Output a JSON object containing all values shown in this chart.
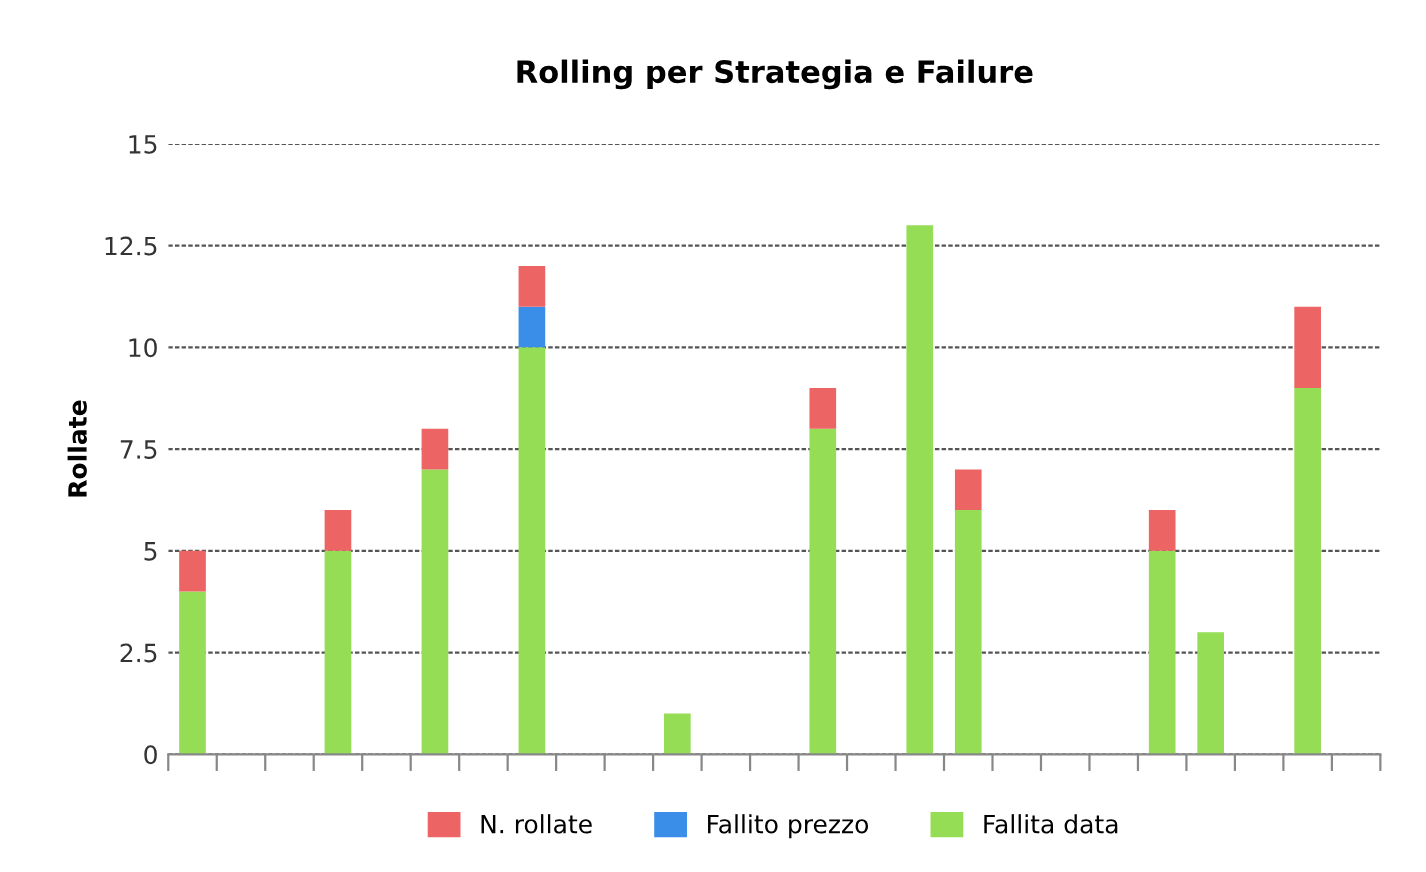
{
  "chart_data": {
    "type": "bar",
    "title": "Rolling per Strategia e Failure",
    "ylabel": "Rollate",
    "stacked": true,
    "categories": [
      null,
      null,
      null,
      null,
      null,
      null,
      null,
      null,
      null,
      null,
      null,
      null,
      null,
      null,
      null,
      null,
      null,
      null,
      null,
      null,
      null,
      null,
      null,
      null,
      null
    ],
    "series": [
      {
        "name": "Fallita data",
        "color": "#95dd55",
        "values": [
          4,
          null,
          null,
          5,
          null,
          7,
          null,
          10,
          null,
          null,
          1,
          null,
          null,
          8,
          null,
          13,
          6,
          null,
          null,
          null,
          5,
          3,
          null,
          9,
          null
        ]
      },
      {
        "name": "Fallito prezzo",
        "color": "#3b8ee8",
        "values": [
          null,
          null,
          null,
          null,
          null,
          null,
          null,
          1,
          null,
          null,
          null,
          null,
          null,
          null,
          null,
          null,
          null,
          null,
          null,
          null,
          null,
          null,
          null,
          null,
          null
        ]
      },
      {
        "name": "N. rollate",
        "color": "#ec6464",
        "values": [
          1,
          null,
          null,
          1,
          null,
          1,
          null,
          1,
          null,
          null,
          null,
          null,
          null,
          1,
          null,
          null,
          1,
          null,
          null,
          null,
          1,
          null,
          null,
          2,
          null
        ]
      }
    ],
    "ylim": [
      0,
      15
    ],
    "yticks": [
      0,
      2.5,
      5,
      7.5,
      10,
      12.5,
      15
    ],
    "grid": "y",
    "legend": "bottom"
  }
}
